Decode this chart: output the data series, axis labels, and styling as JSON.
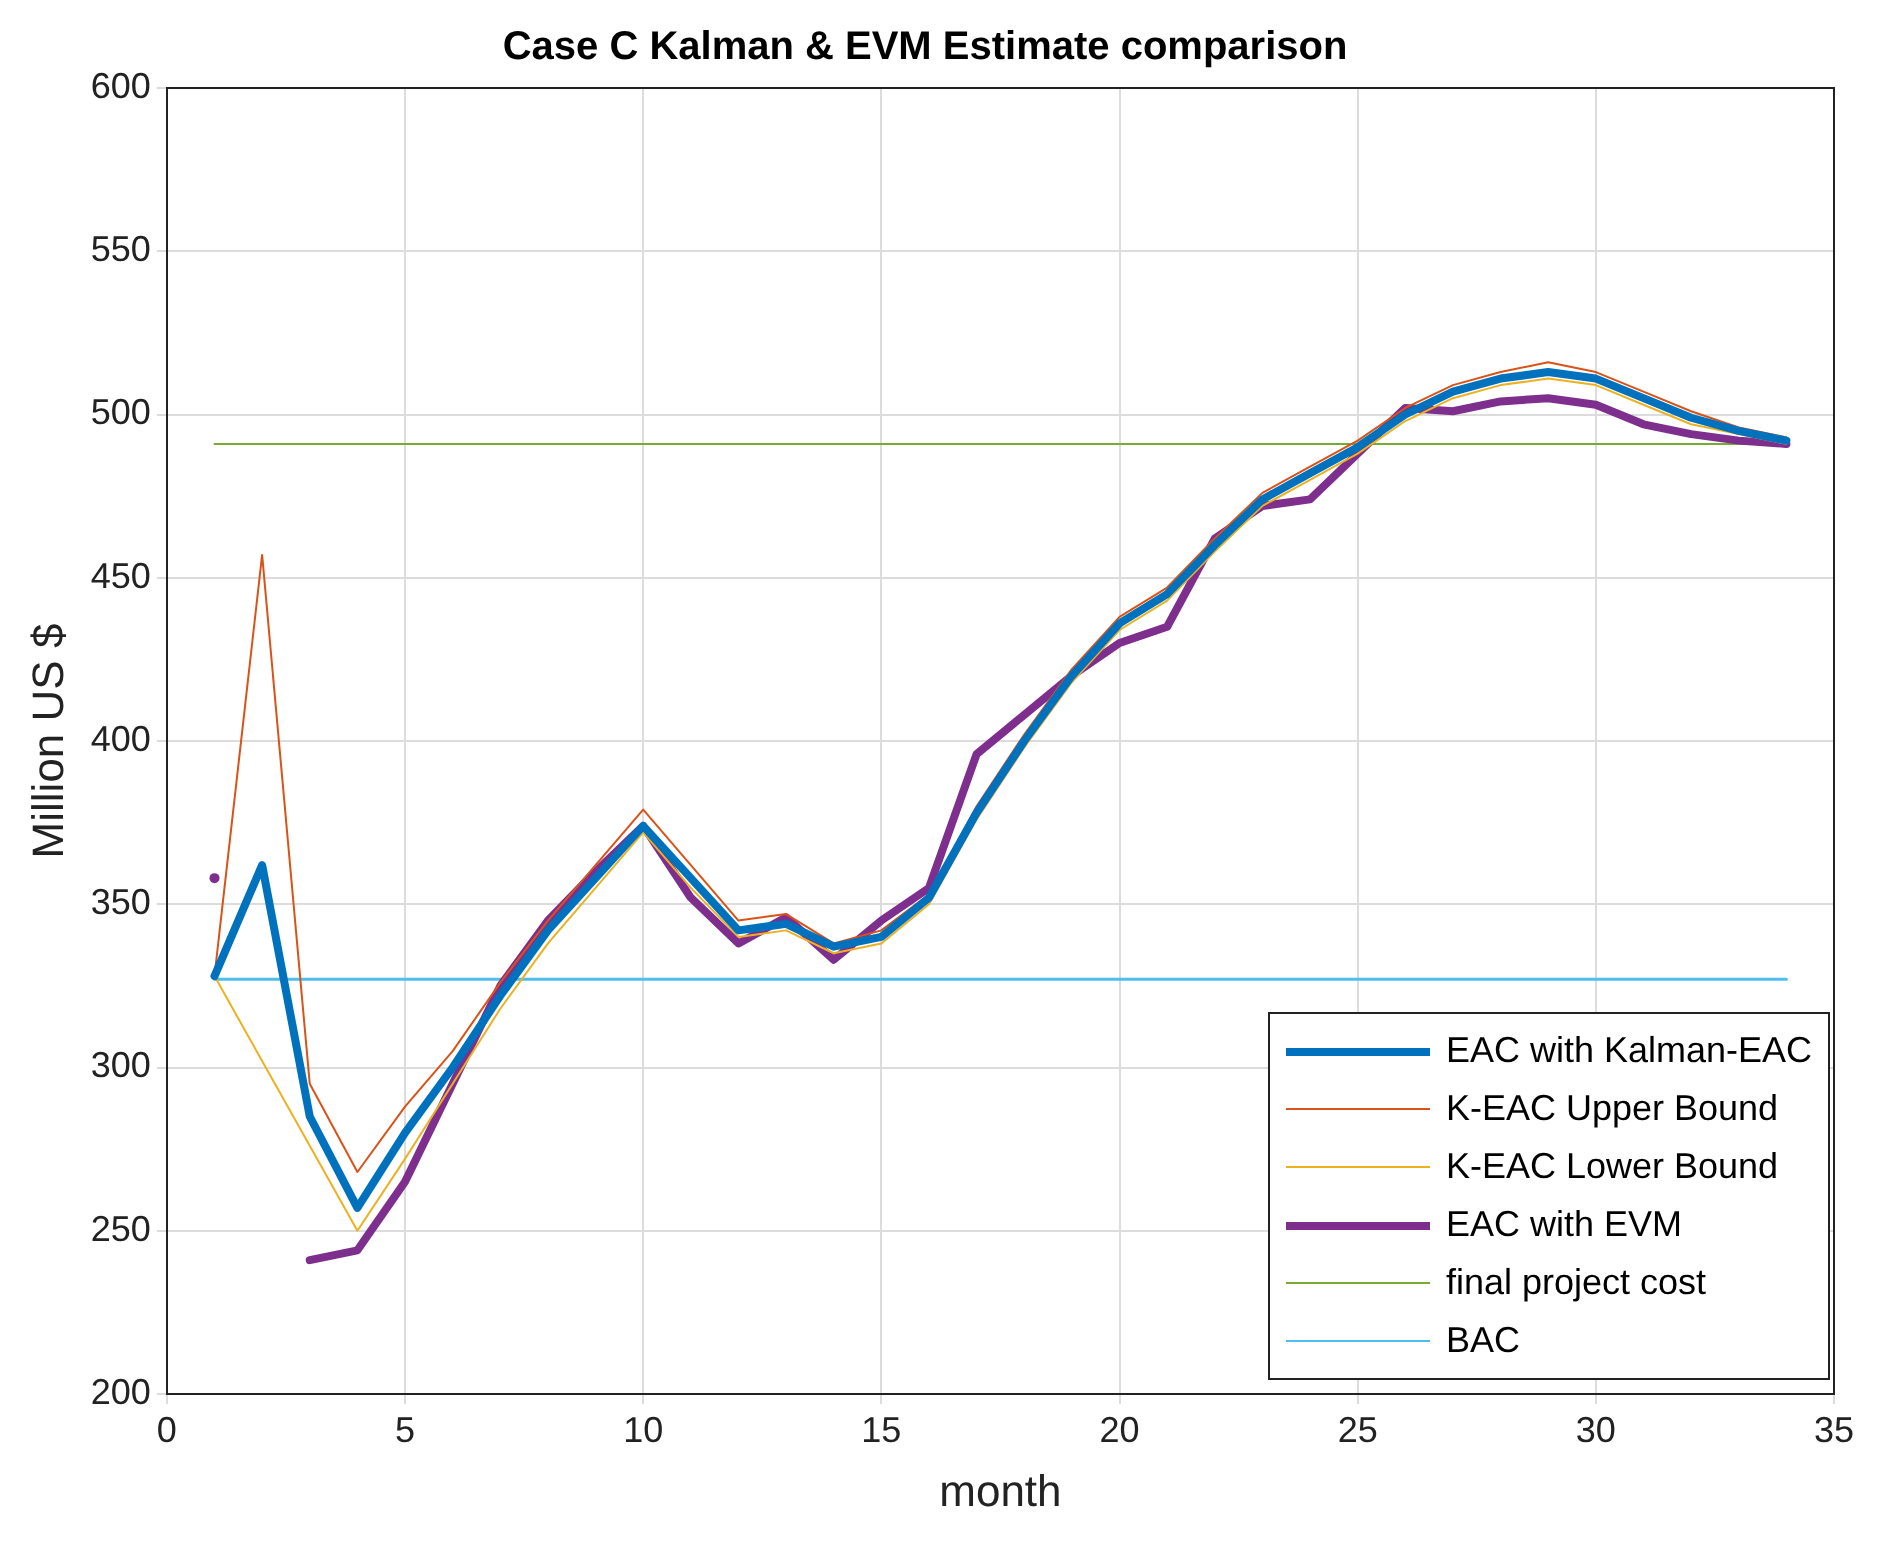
{
  "chart_data": {
    "type": "line",
    "title": "Case C Kalman & EVM Estimate comparison",
    "xlabel": "month",
    "ylabel": "Million US $",
    "xlim": [
      0,
      35
    ],
    "xticks": [
      0,
      5,
      10,
      15,
      20,
      25,
      30,
      35
    ],
    "ylim": [
      200,
      600
    ],
    "yticks": [
      200,
      250,
      300,
      350,
      400,
      450,
      500,
      550,
      600
    ],
    "grid": true,
    "legend": "bottom right",
    "marker": "none",
    "line_style": "solid",
    "x": [
      1,
      2,
      3,
      4,
      5,
      6,
      7,
      8,
      9,
      10,
      11,
      12,
      13,
      14,
      15,
      16,
      17,
      18,
      19,
      20,
      21,
      22,
      23,
      24,
      25,
      26,
      27,
      28,
      29,
      30,
      31,
      32,
      33,
      34
    ],
    "series": [
      {
        "name": "EAC with Kalman-EAC",
        "color": "#0072bd",
        "values": [
          328,
          362,
          285,
          257,
          280,
          300,
          322,
          342,
          358,
          374,
          358,
          342,
          344,
          337,
          340,
          352,
          378,
          400,
          420,
          436,
          445,
          460,
          474,
          482,
          490,
          500,
          507,
          511,
          513,
          511,
          505,
          499,
          495,
          492
        ]
      },
      {
        "name": "K-EAC Upper Bound",
        "color": "#d95319",
        "values": [
          328,
          457,
          295,
          268,
          288,
          305,
          326,
          345,
          362,
          379,
          362,
          345,
          347,
          338,
          342,
          353,
          380,
          402,
          422,
          438,
          447,
          462,
          476,
          484,
          492,
          502,
          509,
          513,
          516,
          513,
          507,
          501,
          496,
          493
        ]
      },
      {
        "name": "K-EAC Lower Bound",
        "color": "#edb120",
        "values": [
          328,
          302,
          276,
          250,
          272,
          295,
          318,
          338,
          355,
          372,
          355,
          340,
          342,
          335,
          338,
          350,
          376,
          398,
          418,
          434,
          443,
          458,
          472,
          480,
          488,
          498,
          505,
          509,
          511,
          509,
          503,
          497,
          494,
          491
        ]
      },
      {
        "name": "EAC with EVM",
        "color": "#7e2f8e",
        "values": [
          358,
          null,
          241,
          244,
          265,
          295,
          325,
          345,
          360,
          374,
          352,
          338,
          346,
          333,
          345,
          355,
          396,
          408,
          420,
          430,
          435,
          462,
          472,
          474,
          488,
          502,
          501,
          504,
          505,
          503,
          497,
          494,
          492,
          491
        ]
      },
      {
        "name": "final project cost",
        "color": "#77ac30",
        "values": [
          491,
          491,
          491,
          491,
          491,
          491,
          491,
          491,
          491,
          491,
          491,
          491,
          491,
          491,
          491,
          491,
          491,
          491,
          491,
          491,
          491,
          491,
          491,
          491,
          491,
          491,
          491,
          491,
          491,
          491,
          491,
          491,
          491,
          491
        ]
      },
      {
        "name": "BAC",
        "color": "#4dbeee",
        "values": [
          327,
          327,
          327,
          327,
          327,
          327,
          327,
          327,
          327,
          327,
          327,
          327,
          327,
          327,
          327,
          327,
          327,
          327,
          327,
          327,
          327,
          327,
          327,
          327,
          327,
          327,
          327,
          327,
          327,
          327,
          327,
          327,
          327,
          327
        ]
      }
    ]
  }
}
